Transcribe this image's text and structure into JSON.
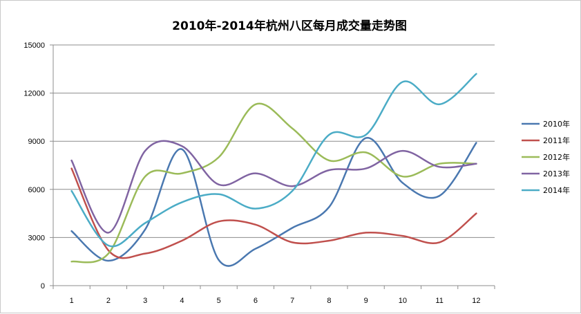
{
  "chart_data": {
    "type": "line",
    "title": "2010年-2014年杭州八区每月成交量走势图",
    "categories": [
      "1",
      "2",
      "3",
      "4",
      "5",
      "6",
      "7",
      "8",
      "9",
      "10",
      "11",
      "12"
    ],
    "y_ticks": [
      "0",
      "3000",
      "6000",
      "9000",
      "12000",
      "15000"
    ],
    "ylim": [
      0,
      15000
    ],
    "grid": true,
    "smooth": true,
    "legend_position": "right",
    "series": [
      {
        "name": "2010年",
        "color": "#4a78b0",
        "values": [
          3400,
          1550,
          3500,
          8500,
          1600,
          2300,
          3600,
          4900,
          9200,
          6400,
          5600,
          8900
        ]
      },
      {
        "name": "2011年",
        "color": "#c0504d",
        "values": [
          7300,
          2200,
          2000,
          2800,
          4000,
          3800,
          2700,
          2800,
          3300,
          3100,
          2700,
          4500
        ]
      },
      {
        "name": "2012年",
        "color": "#9bbb59",
        "values": [
          1500,
          2000,
          6800,
          7000,
          8000,
          11300,
          9800,
          7800,
          8300,
          6800,
          7600,
          7600
        ]
      },
      {
        "name": "2013年",
        "color": "#8064a2",
        "values": [
          7800,
          3300,
          8400,
          8700,
          6300,
          7000,
          6200,
          7200,
          7300,
          8400,
          7400,
          7600
        ]
      },
      {
        "name": "2014年",
        "color": "#4bacc6",
        "values": [
          5900,
          2500,
          3900,
          5200,
          5700,
          4800,
          5900,
          9400,
          9400,
          12700,
          11300,
          13200
        ]
      }
    ]
  }
}
